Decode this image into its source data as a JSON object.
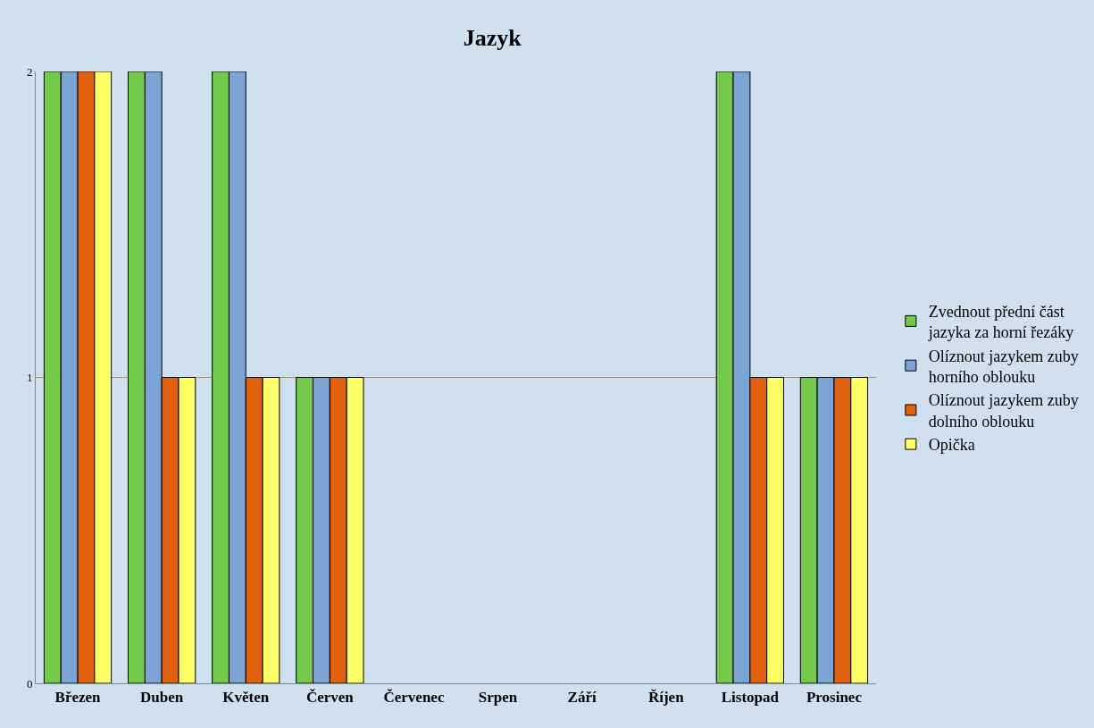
{
  "chart_data": {
    "type": "bar",
    "title": "Jazyk",
    "categories": [
      "Březen",
      "Duben",
      "Květen",
      "Červen",
      "Červenec",
      "Srpen",
      "Září",
      "Říjen",
      "Listopad",
      "Prosinec"
    ],
    "series": [
      {
        "name": "Zvednout přední část jazyka za horní řezáky",
        "color": "#72c94a",
        "values": [
          2,
          2,
          2,
          1,
          0,
          0,
          0,
          0,
          2,
          1
        ]
      },
      {
        "name": "Olíznout jazykem zuby horního oblouku",
        "color": "#7ba3d4",
        "values": [
          2,
          2,
          2,
          1,
          0,
          0,
          0,
          0,
          2,
          1
        ]
      },
      {
        "name": "Olíznout jazykem zuby dolního oblouku",
        "color": "#e0620e",
        "values": [
          2,
          1,
          1,
          1,
          0,
          0,
          0,
          0,
          1,
          1
        ]
      },
      {
        "name": "Opička",
        "color": "#ffff66",
        "values": [
          2,
          1,
          1,
          1,
          0,
          0,
          0,
          0,
          1,
          1
        ]
      }
    ],
    "ylim": [
      0,
      2
    ],
    "yticks": [
      0,
      1,
      2
    ],
    "grid": "y",
    "legend": "right"
  }
}
